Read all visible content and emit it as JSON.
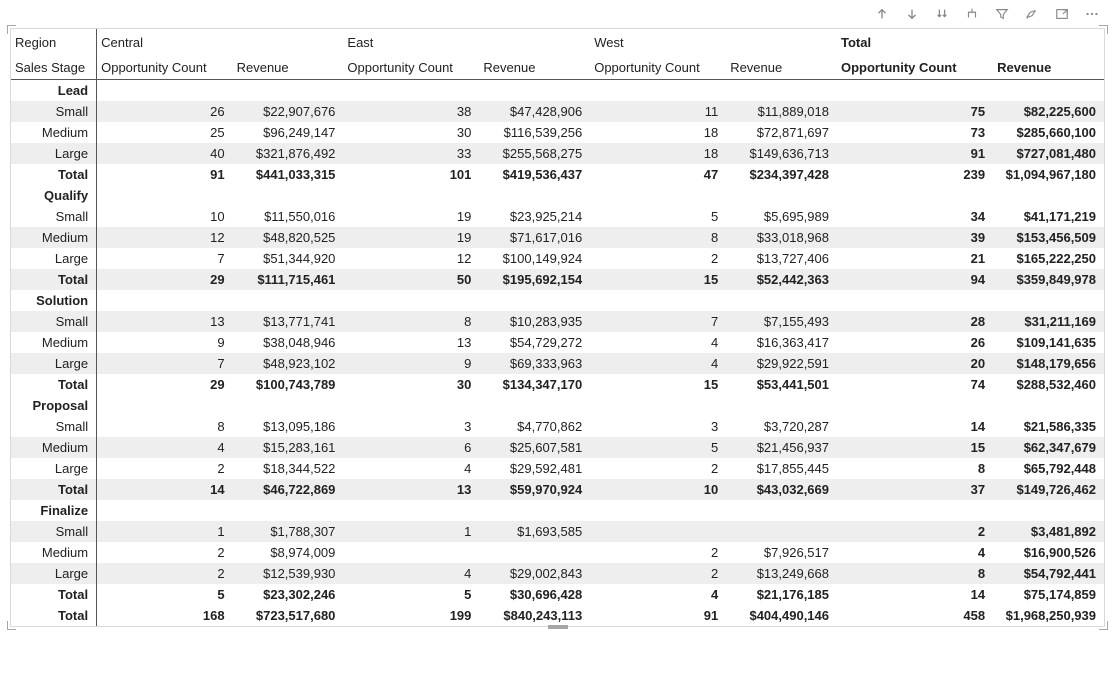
{
  "headers": {
    "row1_label": "Region",
    "row2_label": "Sales Stage",
    "regions": [
      "Central",
      "East",
      "West",
      "Total"
    ],
    "metric1": "Opportunity Count",
    "metric2": "Revenue"
  },
  "stages": [
    {
      "name": "Lead",
      "rows": [
        {
          "label": "Small",
          "band": true,
          "c_cnt": "26",
          "c_rev": "$22,907,676",
          "e_cnt": "38",
          "e_rev": "$47,428,906",
          "w_cnt": "11",
          "w_rev": "$11,889,018",
          "t_cnt": "75",
          "t_rev": "$82,225,600"
        },
        {
          "label": "Medium",
          "band": false,
          "c_cnt": "25",
          "c_rev": "$96,249,147",
          "e_cnt": "30",
          "e_rev": "$116,539,256",
          "w_cnt": "18",
          "w_rev": "$72,871,697",
          "t_cnt": "73",
          "t_rev": "$285,660,100"
        },
        {
          "label": "Large",
          "band": true,
          "c_cnt": "40",
          "c_rev": "$321,876,492",
          "e_cnt": "33",
          "e_rev": "$255,568,275",
          "w_cnt": "18",
          "w_rev": "$149,636,713",
          "t_cnt": "91",
          "t_rev": "$727,081,480"
        }
      ],
      "total": {
        "label": "Total",
        "c_cnt": "91",
        "c_rev": "$441,033,315",
        "e_cnt": "101",
        "e_rev": "$419,536,437",
        "w_cnt": "47",
        "w_rev": "$234,397,428",
        "t_cnt": "239",
        "t_rev": "$1,094,967,180"
      }
    },
    {
      "name": "Qualify",
      "rows": [
        {
          "label": "Small",
          "band": false,
          "c_cnt": "10",
          "c_rev": "$11,550,016",
          "e_cnt": "19",
          "e_rev": "$23,925,214",
          "w_cnt": "5",
          "w_rev": "$5,695,989",
          "t_cnt": "34",
          "t_rev": "$41,171,219"
        },
        {
          "label": "Medium",
          "band": true,
          "c_cnt": "12",
          "c_rev": "$48,820,525",
          "e_cnt": "19",
          "e_rev": "$71,617,016",
          "w_cnt": "8",
          "w_rev": "$33,018,968",
          "t_cnt": "39",
          "t_rev": "$153,456,509"
        },
        {
          "label": "Large",
          "band": false,
          "c_cnt": "7",
          "c_rev": "$51,344,920",
          "e_cnt": "12",
          "e_rev": "$100,149,924",
          "w_cnt": "2",
          "w_rev": "$13,727,406",
          "t_cnt": "21",
          "t_rev": "$165,222,250"
        }
      ],
      "total": {
        "label": "Total",
        "band": true,
        "c_cnt": "29",
        "c_rev": "$111,715,461",
        "e_cnt": "50",
        "e_rev": "$195,692,154",
        "w_cnt": "15",
        "w_rev": "$52,442,363",
        "t_cnt": "94",
        "t_rev": "$359,849,978"
      }
    },
    {
      "name": "Solution",
      "rows": [
        {
          "label": "Small",
          "band": true,
          "c_cnt": "13",
          "c_rev": "$13,771,741",
          "e_cnt": "8",
          "e_rev": "$10,283,935",
          "w_cnt": "7",
          "w_rev": "$7,155,493",
          "t_cnt": "28",
          "t_rev": "$31,211,169"
        },
        {
          "label": "Medium",
          "band": false,
          "c_cnt": "9",
          "c_rev": "$38,048,946",
          "e_cnt": "13",
          "e_rev": "$54,729,272",
          "w_cnt": "4",
          "w_rev": "$16,363,417",
          "t_cnt": "26",
          "t_rev": "$109,141,635"
        },
        {
          "label": "Large",
          "band": true,
          "c_cnt": "7",
          "c_rev": "$48,923,102",
          "e_cnt": "9",
          "e_rev": "$69,333,963",
          "w_cnt": "4",
          "w_rev": "$29,922,591",
          "t_cnt": "20",
          "t_rev": "$148,179,656"
        }
      ],
      "total": {
        "label": "Total",
        "c_cnt": "29",
        "c_rev": "$100,743,789",
        "e_cnt": "30",
        "e_rev": "$134,347,170",
        "w_cnt": "15",
        "w_rev": "$53,441,501",
        "t_cnt": "74",
        "t_rev": "$288,532,460"
      }
    },
    {
      "name": "Proposal",
      "rows": [
        {
          "label": "Small",
          "band": false,
          "c_cnt": "8",
          "c_rev": "$13,095,186",
          "e_cnt": "3",
          "e_rev": "$4,770,862",
          "w_cnt": "3",
          "w_rev": "$3,720,287",
          "t_cnt": "14",
          "t_rev": "$21,586,335"
        },
        {
          "label": "Medium",
          "band": true,
          "c_cnt": "4",
          "c_rev": "$15,283,161",
          "e_cnt": "6",
          "e_rev": "$25,607,581",
          "w_cnt": "5",
          "w_rev": "$21,456,937",
          "t_cnt": "15",
          "t_rev": "$62,347,679"
        },
        {
          "label": "Large",
          "band": false,
          "c_cnt": "2",
          "c_rev": "$18,344,522",
          "e_cnt": "4",
          "e_rev": "$29,592,481",
          "w_cnt": "2",
          "w_rev": "$17,855,445",
          "t_cnt": "8",
          "t_rev": "$65,792,448"
        }
      ],
      "total": {
        "label": "Total",
        "band": true,
        "c_cnt": "14",
        "c_rev": "$46,722,869",
        "e_cnt": "13",
        "e_rev": "$59,970,924",
        "w_cnt": "10",
        "w_rev": "$43,032,669",
        "t_cnt": "37",
        "t_rev": "$149,726,462"
      }
    },
    {
      "name": "Finalize",
      "rows": [
        {
          "label": "Small",
          "band": true,
          "c_cnt": "1",
          "c_rev": "$1,788,307",
          "e_cnt": "1",
          "e_rev": "$1,693,585",
          "w_cnt": "",
          "w_rev": "",
          "t_cnt": "2",
          "t_rev": "$3,481,892"
        },
        {
          "label": "Medium",
          "band": false,
          "c_cnt": "2",
          "c_rev": "$8,974,009",
          "e_cnt": "",
          "e_rev": "",
          "w_cnt": "2",
          "w_rev": "$7,926,517",
          "t_cnt": "4",
          "t_rev": "$16,900,526"
        },
        {
          "label": "Large",
          "band": true,
          "c_cnt": "2",
          "c_rev": "$12,539,930",
          "e_cnt": "4",
          "e_rev": "$29,002,843",
          "w_cnt": "2",
          "w_rev": "$13,249,668",
          "t_cnt": "8",
          "t_rev": "$54,792,441"
        }
      ],
      "total": {
        "label": "Total",
        "c_cnt": "5",
        "c_rev": "$23,302,246",
        "e_cnt": "5",
        "e_rev": "$30,696,428",
        "w_cnt": "4",
        "w_rev": "$21,176,185",
        "t_cnt": "14",
        "t_rev": "$75,174,859"
      }
    }
  ],
  "grand_total": {
    "label": "Total",
    "c_cnt": "168",
    "c_rev": "$723,517,680",
    "e_cnt": "199",
    "e_rev": "$840,243,113",
    "w_cnt": "91",
    "w_rev": "$404,490,146",
    "t_cnt": "458",
    "t_rev": "$1,968,250,939"
  }
}
